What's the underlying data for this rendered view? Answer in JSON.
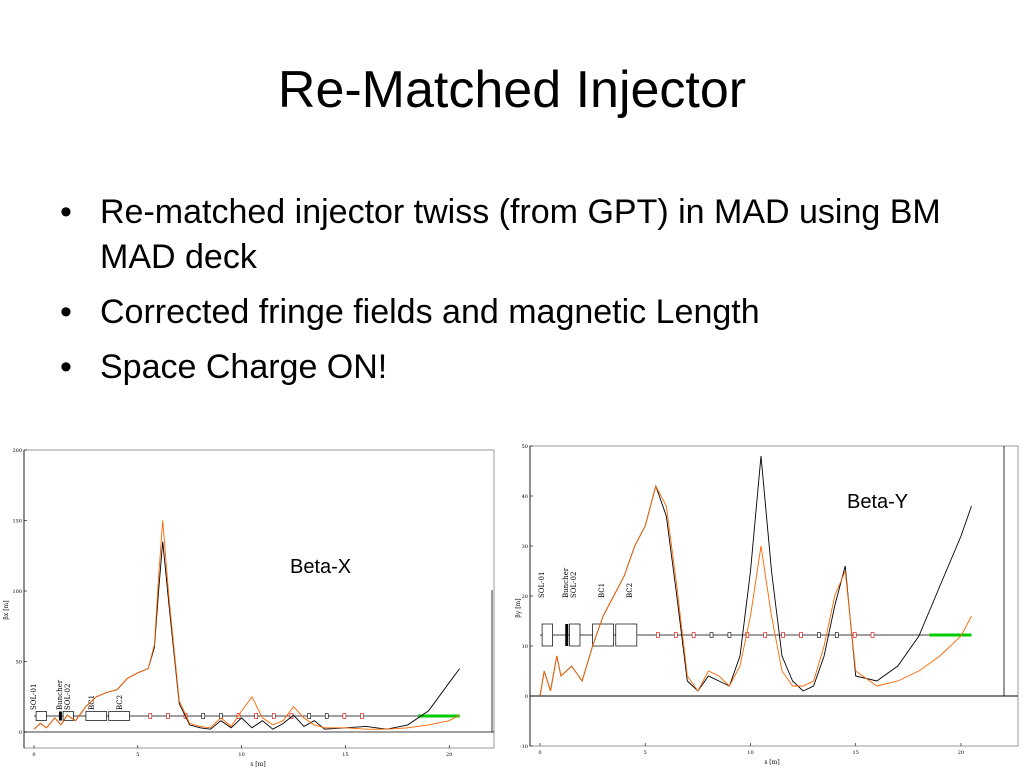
{
  "slide": {
    "title": "Re-Matched Injector",
    "bullets": [
      "Re-matched injector twiss (from GPT) in MAD using BM MAD deck",
      "Corrected fringe fields and magnetic Length",
      "Space Charge ON!"
    ]
  },
  "chart_data": [
    {
      "type": "line",
      "title": "",
      "annotation": "Beta-X",
      "xlabel": "s [m]",
      "ylabel": "βx [m]",
      "xlim": [
        0,
        21
      ],
      "ylim": [
        0,
        200
      ],
      "xticks": [
        "0",
        "5",
        "10",
        "15",
        "20"
      ],
      "yticks": [
        "0",
        "50",
        "100",
        "150",
        "200"
      ],
      "element_labels": [
        "SOL-01",
        "Buncher",
        "SOL-02",
        "BC1",
        "BC2"
      ],
      "colors": {
        "series_a": "#000000",
        "series_b": "#ff6600",
        "beamline": "#000000",
        "highlight": "#00cc00"
      },
      "series": [
        {
          "x": [
            0,
            0.3,
            0.6,
            1.0,
            1.3,
            1.6,
            2.0,
            2.5,
            3.0,
            3.5,
            4.0,
            4.5,
            5.0,
            5.5,
            5.8,
            6.0,
            6.2,
            6.5,
            7.0,
            7.5,
            8.0,
            8.5,
            9.0,
            9.5,
            10.0,
            10.5,
            11.0,
            11.5,
            12.0,
            12.5,
            13.0,
            13.5,
            14.0,
            15.0,
            16.0,
            17.0,
            18.0,
            19.0,
            20.0,
            20.5
          ],
          "y": [
            2,
            6,
            3,
            10,
            5,
            12,
            8,
            18,
            25,
            28,
            30,
            38,
            42,
            45,
            60,
            100,
            135,
            90,
            20,
            5,
            3,
            2,
            8,
            3,
            10,
            3,
            8,
            2,
            6,
            12,
            4,
            8,
            2,
            3,
            4,
            2,
            5,
            15,
            35,
            45
          ]
        },
        {
          "x": [
            0,
            0.3,
            0.6,
            1.0,
            1.3,
            1.6,
            2.0,
            2.5,
            3.0,
            3.5,
            4.0,
            4.5,
            5.0,
            5.5,
            5.8,
            6.0,
            6.2,
            6.5,
            7.0,
            7.5,
            8.0,
            8.5,
            9.0,
            9.5,
            10.0,
            10.5,
            11.0,
            11.5,
            12.0,
            12.5,
            13.0,
            13.5,
            14.0,
            15.0,
            16.0,
            17.0,
            18.0,
            19.0,
            20.0,
            20.5
          ],
          "y": [
            2,
            6,
            3,
            10,
            5,
            12,
            8,
            18,
            25,
            28,
            30,
            38,
            42,
            45,
            62,
            110,
            150,
            95,
            22,
            6,
            4,
            3,
            10,
            4,
            15,
            25,
            10,
            5,
            8,
            18,
            10,
            5,
            3,
            3,
            2,
            2,
            3,
            5,
            8,
            12
          ]
        }
      ]
    },
    {
      "type": "line",
      "title": "",
      "annotation": "Beta-Y",
      "xlabel": "s [m]",
      "ylabel": "βy [m]",
      "xlim": [
        0,
        21
      ],
      "ylim": [
        -10,
        50
      ],
      "xticks": [
        "0",
        "5",
        "10",
        "15",
        "20"
      ],
      "yticks": [
        "-10",
        "0",
        "10",
        "20",
        "30",
        "40",
        "50"
      ],
      "element_labels": [
        "SOL-01",
        "Buncher",
        "SOL-02",
        "BC1",
        "BC2"
      ],
      "colors": {
        "series_a": "#000000",
        "series_b": "#ff6600",
        "beamline": "#000000",
        "highlight": "#00cc00"
      },
      "series": [
        {
          "x": [
            0,
            0.2,
            0.5,
            0.8,
            1.0,
            1.5,
            2.0,
            2.5,
            3.0,
            3.5,
            4.0,
            4.5,
            5.0,
            5.5,
            6.0,
            6.5,
            7.0,
            7.5,
            8.0,
            8.5,
            9.0,
            9.5,
            10.0,
            10.5,
            11.0,
            11.5,
            12.0,
            12.5,
            13.0,
            13.5,
            14.0,
            14.5,
            15.0,
            16.0,
            17.0,
            18.0,
            19.0,
            20.0,
            20.5
          ],
          "y": [
            0,
            5,
            1,
            8,
            4,
            6,
            3,
            10,
            16,
            20,
            24,
            30,
            34,
            42,
            36,
            20,
            3,
            1,
            4,
            3,
            2,
            8,
            25,
            48,
            25,
            8,
            3,
            1,
            2,
            8,
            18,
            26,
            4,
            3,
            6,
            12,
            22,
            32,
            38
          ]
        },
        {
          "x": [
            0,
            0.2,
            0.5,
            0.8,
            1.0,
            1.5,
            2.0,
            2.5,
            3.0,
            3.5,
            4.0,
            4.5,
            5.0,
            5.5,
            6.0,
            6.5,
            7.0,
            7.5,
            8.0,
            8.5,
            9.0,
            9.5,
            10.0,
            10.5,
            11.0,
            11.5,
            12.0,
            12.5,
            13.0,
            13.5,
            14.0,
            14.5,
            15.0,
            16.0,
            17.0,
            18.0,
            19.0,
            20.0,
            20.5
          ],
          "y": [
            0,
            5,
            1,
            8,
            4,
            6,
            3,
            10,
            16,
            20,
            24,
            30,
            34,
            42,
            38,
            22,
            4,
            1,
            5,
            4,
            2,
            6,
            16,
            30,
            16,
            5,
            2,
            2,
            3,
            10,
            20,
            25,
            5,
            2,
            3,
            5,
            8,
            12,
            16
          ]
        }
      ]
    }
  ]
}
